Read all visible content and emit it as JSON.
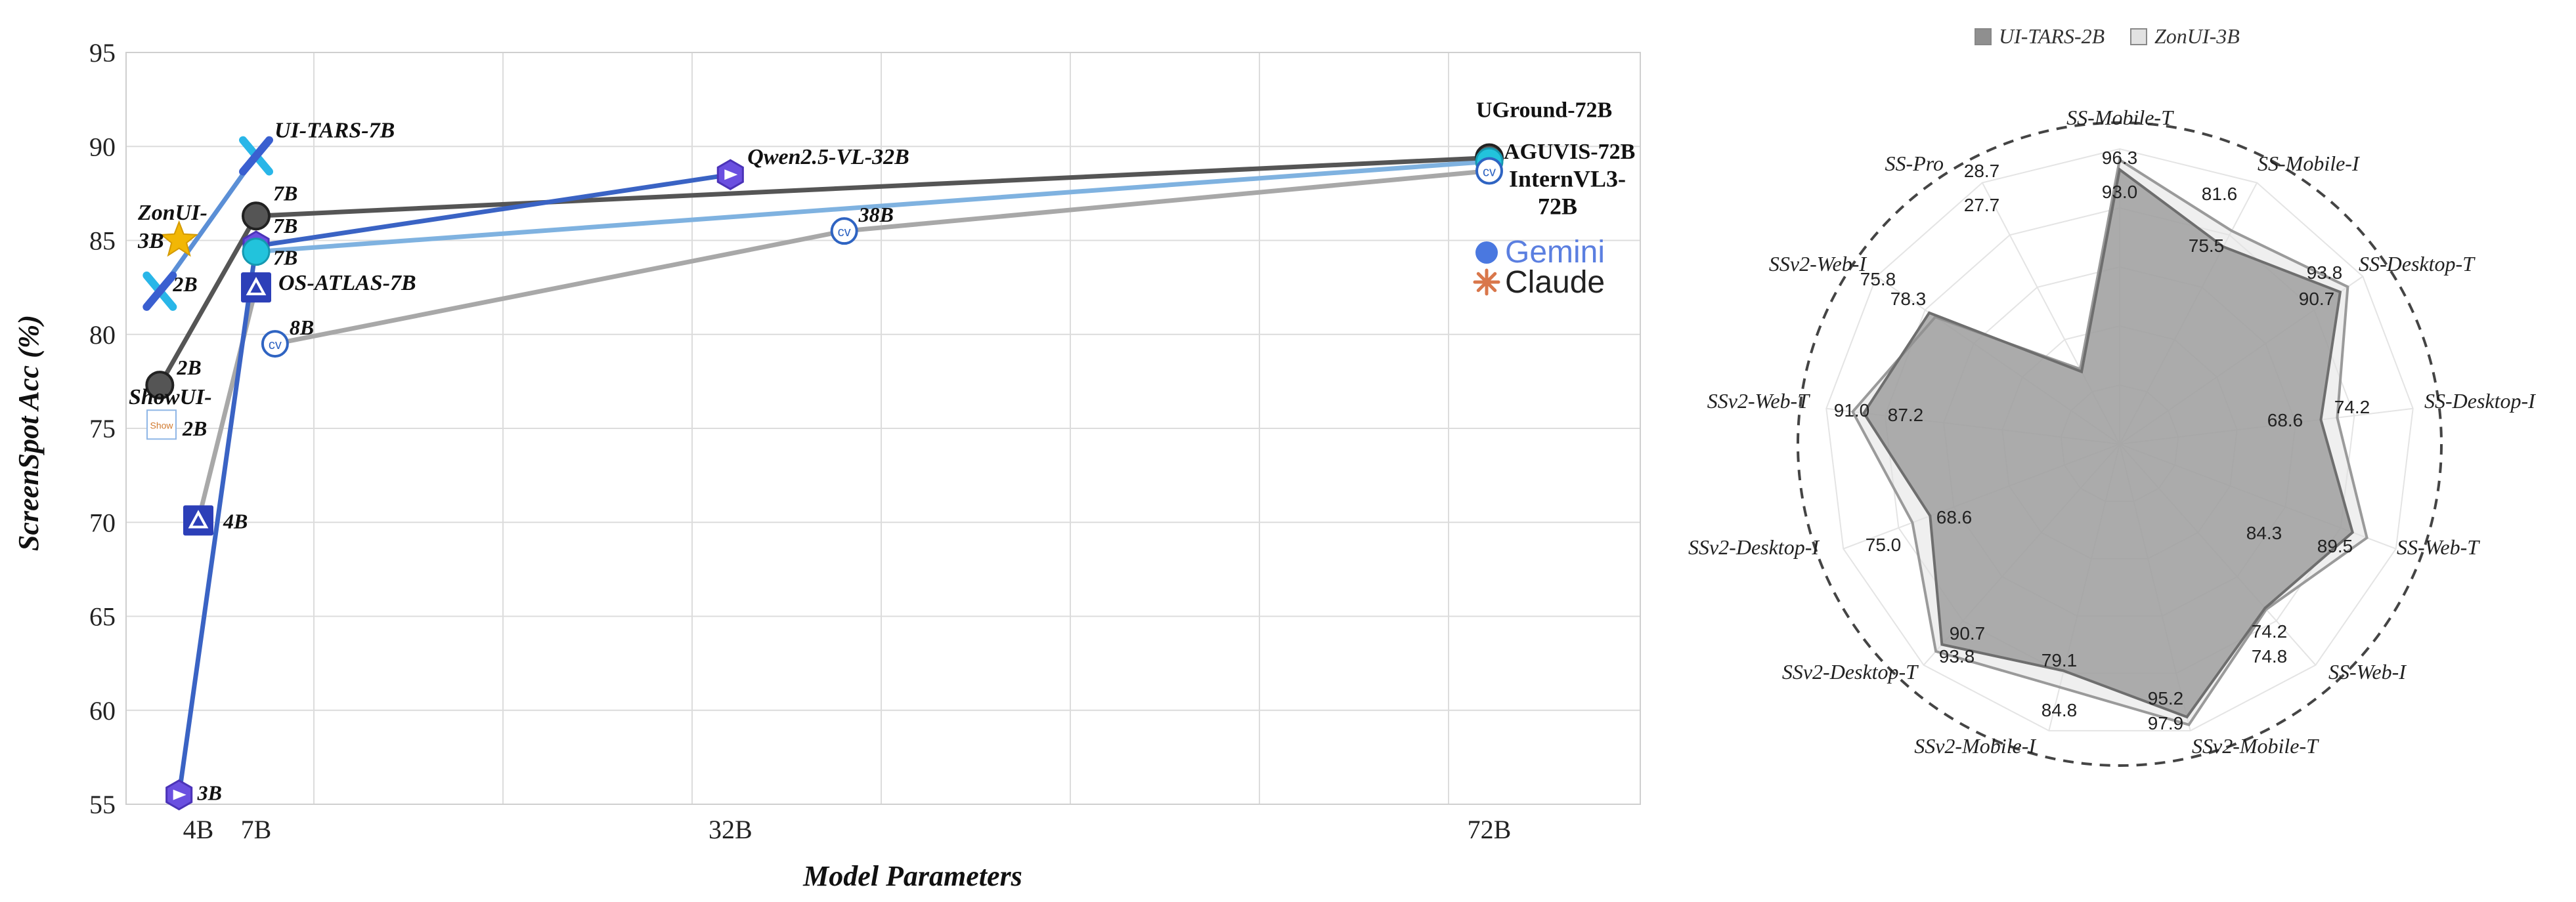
{
  "chart_data": [
    {
      "type": "scatter",
      "xlabel": "Model Parameters",
      "ylabel": "ScreenSpot Acc (%)",
      "ylim": [
        55,
        95
      ],
      "y_ticks": [
        55,
        60,
        65,
        70,
        75,
        80,
        85,
        90,
        95
      ],
      "x_ticks": [
        {
          "value": 4,
          "label": "4B"
        },
        {
          "value": 7,
          "label": "7B"
        },
        {
          "value": 32,
          "label": "32B"
        },
        {
          "value": 72,
          "label": "72B"
        }
      ],
      "grid": true,
      "series": [
        {
          "name": "UI-TARS",
          "color": "#5b8fd6",
          "marker": "uitars-icon",
          "points": [
            {
              "x": 2,
              "y": 82.3,
              "label": "2B"
            },
            {
              "x": 7,
              "y": 89.5,
              "label": "UI-TARS-7B"
            }
          ]
        },
        {
          "name": "ShowUI",
          "color": "#555555",
          "marker": "circle-icon",
          "points": [
            {
              "x": 2,
              "y": 77.3,
              "label": "2B"
            },
            {
              "x": 7,
              "y": 86.3,
              "label": "7B"
            },
            {
              "x": 72,
              "y": 89.4,
              "label": "UGround-72B"
            }
          ]
        },
        {
          "name": "Qwen2.5-VL",
          "color": "#3a63c4",
          "marker": "qwen-icon",
          "points": [
            {
              "x": 3,
              "y": 55.5,
              "label": "3B"
            },
            {
              "x": 7,
              "y": 84.7,
              "label": "7B"
            },
            {
              "x": 32,
              "y": 88.5,
              "label": "Qwen2.5-VL-32B"
            }
          ]
        },
        {
          "name": "AGUVIS",
          "color": "#7fb2e0",
          "marker": "aguvis-icon",
          "points": [
            {
              "x": 7,
              "y": 84.4,
              "label": "7B"
            },
            {
              "x": 72,
              "y": 89.2,
              "label": "AGUVIS-72B"
            }
          ]
        },
        {
          "name": "OS-ATLAS",
          "color": "#a8a8a8",
          "marker": "osatlas-icon",
          "points": [
            {
              "x": 4,
              "y": 70.1,
              "label": "4B"
            },
            {
              "x": 7,
              "y": 82.5,
              "label": "OS-ATLAS-7B"
            }
          ]
        },
        {
          "name": "InternVL3",
          "color": "#a8a8a8",
          "marker": "internvl-icon",
          "points": [
            {
              "x": 8,
              "y": 79.5,
              "label": "8B"
            },
            {
              "x": 38,
              "y": 85.5,
              "label": "38B"
            },
            {
              "x": 72,
              "y": 88.7,
              "label": "InternVL3-72B"
            }
          ]
        }
      ],
      "standalone_points": [
        {
          "x": 3,
          "y": 85.0,
          "label": "ZonUI-3B",
          "marker": "star-icon",
          "color": "#f2b705"
        },
        {
          "x": 2,
          "y": 75.2,
          "label": "ShowUI-2B",
          "marker": "showui-logo",
          "color": "#6a9bd8"
        }
      ],
      "logos": [
        "Gemini",
        "Claude"
      ]
    },
    {
      "type": "radar",
      "axes": [
        "SS-Mobile-T",
        "SS-Mobile-I",
        "SS-Desktop-T",
        "SS-Desktop-I",
        "SS-Web-T",
        "SS-Web-I",
        "SSv2-Mobile-T",
        "SSv2-Mobile-I",
        "SSv2-Desktop-T",
        "SSv2-Desktop-I",
        "SSv2-Web-T",
        "SSv2-Web-I",
        "SS-Pro"
      ],
      "series": [
        {
          "name": "UI-TARS-2B",
          "color": "#8f8f8f",
          "values": [
            93.0,
            75.5,
            90.7,
            68.6,
            84.3,
            74.2,
            95.2,
            79.1,
            90.7,
            68.6,
            87.2,
            78.3,
            27.7
          ]
        },
        {
          "name": "ZonUI-3B",
          "color": "#e2e2e2",
          "values": [
            96.3,
            81.6,
            93.8,
            74.2,
            89.5,
            74.8,
            97.9,
            84.8,
            93.8,
            75.0,
            91.0,
            75.8,
            28.7
          ]
        }
      ],
      "value_labels": [
        [
          "93.0",
          "96.3"
        ],
        [
          "75.5",
          "81.6"
        ],
        [
          "90.7",
          "93.8"
        ],
        [
          "68.6",
          "74.2"
        ],
        [
          "84.3",
          "89.5"
        ],
        [
          "74.2",
          "74.8"
        ],
        [
          "95.2",
          "97.9"
        ],
        [
          "79.1",
          "84.8"
        ],
        [
          "90.7",
          "93.8"
        ],
        [
          "68.6",
          "75.0"
        ],
        [
          "87.2",
          "91.0"
        ],
        [
          "78.3",
          "75.8"
        ],
        [
          "27.7",
          "28.7"
        ]
      ],
      "legend": "top"
    }
  ]
}
